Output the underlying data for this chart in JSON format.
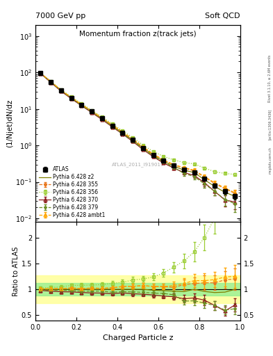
{
  "title_top": "7000 GeV pp",
  "title_right": "Soft QCD",
  "plot_title": "Momentum fraction z(track jets)",
  "ylabel_main": "(1/Njet)dN/dz",
  "ylabel_ratio": "Ratio to ATLAS",
  "xlabel": "Charged Particle z",
  "right_label_top": "Rivet 3.1.10, ≥ 2.6M events",
  "right_label_bot": "[arXiv:1306.3436]",
  "right_label_url": "mcplots.cern.ch",
  "watermark": "ATLAS_2011_I919017",
  "colors": {
    "atlas": "#000000",
    "p355": "#e87820",
    "p356": "#9acd32",
    "p370": "#8b1a1a",
    "p379": "#6b8e23",
    "pambt1": "#ffa500",
    "pz2": "#808000"
  },
  "x_main": [
    0.025,
    0.075,
    0.125,
    0.175,
    0.225,
    0.275,
    0.325,
    0.375,
    0.425,
    0.475,
    0.525,
    0.575,
    0.625,
    0.675,
    0.725,
    0.775,
    0.825,
    0.875,
    0.925,
    0.975
  ],
  "atlas_y": [
    95,
    55,
    32,
    20,
    13,
    8.5,
    5.5,
    3.5,
    2.2,
    1.4,
    0.85,
    0.55,
    0.38,
    0.28,
    0.22,
    0.18,
    0.12,
    0.08,
    0.055,
    0.04
  ],
  "atlas_yerr": [
    3,
    2,
    1,
    0.7,
    0.5,
    0.3,
    0.2,
    0.15,
    0.1,
    0.07,
    0.04,
    0.03,
    0.02,
    0.02,
    0.02,
    0.02,
    0.015,
    0.01,
    0.008,
    0.007
  ],
  "p355_y": [
    96,
    55.5,
    32.5,
    20.5,
    13.2,
    8.7,
    5.6,
    3.6,
    2.32,
    1.48,
    0.91,
    0.58,
    0.4,
    0.29,
    0.24,
    0.2,
    0.135,
    0.09,
    0.065,
    0.048
  ],
  "p355_yerr": [
    2,
    1.5,
    0.8,
    0.5,
    0.35,
    0.22,
    0.15,
    0.11,
    0.08,
    0.06,
    0.04,
    0.03,
    0.025,
    0.022,
    0.022,
    0.022,
    0.018,
    0.013,
    0.011,
    0.01
  ],
  "p356_y": [
    97,
    57,
    33.5,
    21.5,
    14.0,
    9.2,
    6.0,
    3.9,
    2.5,
    1.65,
    1.02,
    0.68,
    0.5,
    0.4,
    0.34,
    0.31,
    0.24,
    0.19,
    0.17,
    0.16
  ],
  "p356_yerr": [
    2,
    1.5,
    0.8,
    0.5,
    0.35,
    0.22,
    0.15,
    0.11,
    0.08,
    0.06,
    0.04,
    0.03,
    0.025,
    0.022,
    0.022,
    0.022,
    0.018,
    0.013,
    0.011,
    0.01
  ],
  "p370_y": [
    93,
    53,
    30.5,
    19.0,
    12.2,
    7.9,
    5.1,
    3.2,
    2.05,
    1.28,
    0.77,
    0.49,
    0.33,
    0.24,
    0.18,
    0.15,
    0.095,
    0.055,
    0.032,
    0.028
  ],
  "p370_yerr": [
    2,
    1.5,
    0.8,
    0.5,
    0.35,
    0.22,
    0.15,
    0.11,
    0.08,
    0.06,
    0.04,
    0.03,
    0.025,
    0.022,
    0.022,
    0.022,
    0.018,
    0.013,
    0.011,
    0.01
  ],
  "p379_y": [
    94,
    54,
    31.5,
    19.5,
    12.5,
    8.2,
    5.3,
    3.3,
    2.1,
    1.33,
    0.8,
    0.51,
    0.35,
    0.25,
    0.17,
    0.14,
    0.088,
    0.055,
    0.033,
    0.025
  ],
  "p379_yerr": [
    2,
    1.5,
    0.8,
    0.5,
    0.35,
    0.22,
    0.15,
    0.11,
    0.08,
    0.06,
    0.04,
    0.03,
    0.025,
    0.022,
    0.022,
    0.022,
    0.018,
    0.013,
    0.011,
    0.01
  ],
  "pambt1_y": [
    96,
    55.5,
    32.5,
    20.5,
    13.2,
    8.7,
    5.6,
    3.6,
    2.32,
    1.48,
    0.91,
    0.58,
    0.4,
    0.3,
    0.245,
    0.21,
    0.14,
    0.095,
    0.068,
    0.05
  ],
  "pambt1_yerr": [
    2,
    1.5,
    0.8,
    0.5,
    0.35,
    0.22,
    0.15,
    0.11,
    0.08,
    0.06,
    0.04,
    0.03,
    0.025,
    0.022,
    0.022,
    0.022,
    0.018,
    0.013,
    0.011,
    0.01
  ],
  "pz2_y": [
    95,
    55,
    32,
    20,
    13,
    8.5,
    5.5,
    3.5,
    2.2,
    1.4,
    0.85,
    0.54,
    0.37,
    0.27,
    0.21,
    0.18,
    0.115,
    0.075,
    0.052,
    0.04
  ],
  "xlim": [
    0,
    1.0
  ],
  "ylim_main": [
    0.008,
    2000
  ],
  "ylim_ratio": [
    0.4,
    2.3
  ],
  "ratio_yticks": [
    0.5,
    1.0,
    1.5,
    2.0
  ],
  "band_color_yellow": "#ffff99",
  "band_color_green": "#90ee90",
  "band_yellow_lo": 0.73,
  "band_yellow_hi": 1.27,
  "band_green_lo": 0.88,
  "band_green_hi": 1.12
}
